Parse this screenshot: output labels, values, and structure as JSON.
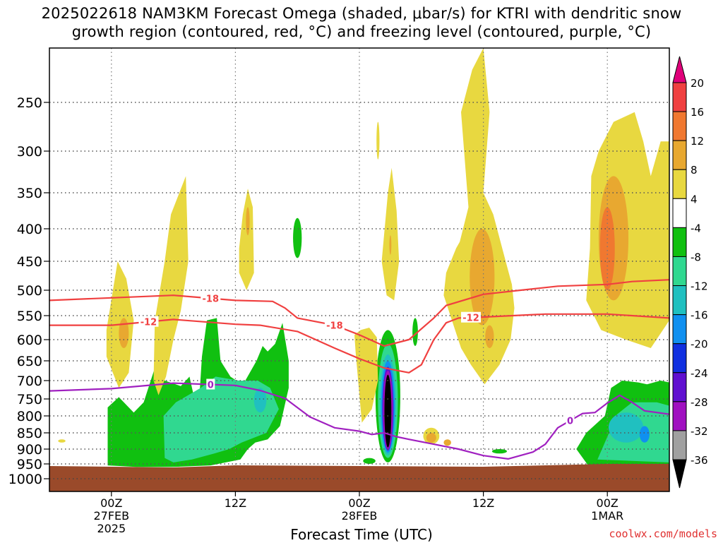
{
  "title": {
    "line1": "2025022618 NAM3KM Forecast Omega (shaded, μbar/s) for KTRI with dendritic snow",
    "line2": "growth region (contoured, red, °C) and freezing level (contoured, purple, °C)"
  },
  "credit": "coolwx.com/models",
  "colors": {
    "ground": "#9a4a2a",
    "contour_red": "#f04040",
    "contour_purple": "#a020c0",
    "grid": "#555555"
  },
  "chart_data": {
    "type": "heatmap",
    "xlabel": "Forecast Time (UTC)",
    "ylabel": "",
    "ylim": [
      1000,
      200
    ],
    "y_ticks": [
      250,
      300,
      350,
      400,
      450,
      500,
      550,
      600,
      650,
      700,
      750,
      800,
      850,
      900,
      950,
      1000
    ],
    "x_range_hours": [
      -5,
      45
    ],
    "x_ticks": [
      {
        "hour": 0,
        "lines": [
          "00Z",
          "27FEB",
          "2025"
        ]
      },
      {
        "hour": 10,
        "lines": [
          "12Z"
        ]
      },
      {
        "hour": 20,
        "lines": [
          "00Z",
          "28FEB"
        ]
      },
      {
        "hour": 30,
        "lines": [
          "12Z"
        ]
      },
      {
        "hour": 40,
        "lines": [
          "00Z",
          "1MAR"
        ]
      }
    ],
    "colorbar": {
      "labels": [
        "20",
        "16",
        "12",
        "8",
        "4",
        "-4",
        "-8",
        "-12",
        "-16",
        "-20",
        "-24",
        "-28",
        "-32",
        "-36"
      ],
      "colors": [
        "#e0007a",
        "#f04040",
        "#f07830",
        "#e8a830",
        "#e8d840",
        "#ffffff",
        "#10c010",
        "#30d890",
        "#20c0c0",
        "#1090f0",
        "#1030e0",
        "#6010d0",
        "#a010c0",
        "#a0a0a0",
        "#000000"
      ]
    },
    "contours": [
      {
        "name": "-18",
        "color": "#f04040",
        "label_at": [
          8,
          18
        ],
        "points": [
          [
            -5,
            520
          ],
          [
            0,
            515
          ],
          [
            5,
            510
          ],
          [
            10,
            520
          ],
          [
            13,
            522
          ],
          [
            14,
            535
          ],
          [
            15,
            555
          ],
          [
            18,
            570
          ],
          [
            20,
            590
          ],
          [
            22,
            615
          ],
          [
            24,
            600
          ],
          [
            26,
            555
          ],
          [
            27,
            530
          ],
          [
            30,
            508
          ],
          [
            33,
            500
          ],
          [
            36,
            493
          ],
          [
            40,
            490
          ],
          [
            42,
            485
          ],
          [
            45,
            482
          ]
        ]
      },
      {
        "name": "-12",
        "color": "#f04040",
        "label_at": [
          3,
          29
        ],
        "points": [
          [
            -5,
            570
          ],
          [
            0,
            570
          ],
          [
            5,
            558
          ],
          [
            10,
            568
          ],
          [
            12,
            570
          ],
          [
            15,
            583
          ],
          [
            18,
            620
          ],
          [
            20,
            645
          ],
          [
            22,
            668
          ],
          [
            24,
            680
          ],
          [
            25,
            660
          ],
          [
            26,
            600
          ],
          [
            27,
            565
          ],
          [
            28,
            555
          ],
          [
            30,
            553
          ],
          [
            35,
            547
          ],
          [
            40,
            547
          ],
          [
            45,
            555
          ]
        ]
      },
      {
        "name": "0",
        "color": "#a020c0",
        "label_at": [
          8,
          37
        ],
        "points": [
          [
            -5,
            728
          ],
          [
            0,
            722
          ],
          [
            5,
            707
          ],
          [
            10,
            713
          ],
          [
            12,
            727
          ],
          [
            14,
            748
          ],
          [
            16,
            803
          ],
          [
            18,
            835
          ],
          [
            20,
            845
          ],
          [
            21,
            855
          ],
          [
            22,
            850
          ],
          [
            23,
            862
          ],
          [
            24,
            870
          ],
          [
            26,
            885
          ],
          [
            28,
            900
          ],
          [
            30,
            922
          ],
          [
            32,
            933
          ],
          [
            34,
            910
          ],
          [
            35,
            885
          ],
          [
            36,
            835
          ],
          [
            38,
            793
          ],
          [
            39,
            790
          ],
          [
            40,
            762
          ],
          [
            41,
            740
          ],
          [
            42,
            760
          ],
          [
            43,
            785
          ],
          [
            45,
            795
          ]
        ]
      }
    ]
  }
}
